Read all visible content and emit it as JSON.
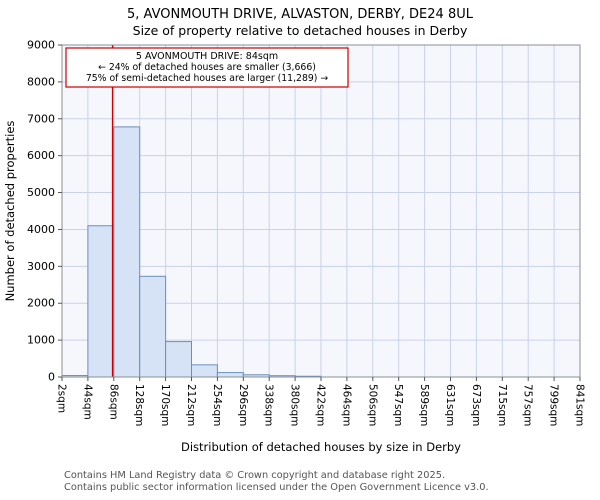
{
  "chart_data": {
    "type": "bar",
    "title": "5, AVONMOUTH DRIVE, ALVASTON, DERBY, DE24 8UL",
    "subtitle": "Size of property relative to detached houses in Derby",
    "xlabel": "Distribution of detached houses by size in Derby",
    "ylabel": "Number of detached properties",
    "ylim": [
      0,
      9000
    ],
    "ytick_step": 1000,
    "grid": true,
    "categories": [
      "2sqm",
      "44sqm",
      "86sqm",
      "128sqm",
      "170sqm",
      "212sqm",
      "254sqm",
      "296sqm",
      "338sqm",
      "380sqm",
      "422sqm",
      "464sqm",
      "506sqm",
      "547sqm",
      "589sqm",
      "631sqm",
      "673sqm",
      "715sqm",
      "757sqm",
      "799sqm",
      "841sqm"
    ],
    "values": [
      40,
      4100,
      6780,
      2730,
      960,
      330,
      120,
      60,
      35,
      20,
      0,
      0,
      0,
      0,
      0,
      0,
      0,
      0,
      0,
      0
    ],
    "bar_fill": "#d6e2f5",
    "bar_stroke": "#6c8ebf",
    "grid_color": "#c9d2e8",
    "plot_bg": "#f5f7fc",
    "spine_color": "#8a8f99",
    "marker": {
      "value": 84,
      "label": "84sqm",
      "color": "#cc0000"
    },
    "annotation": {
      "border_color": "#cc0000",
      "lines": [
        "5 AVONMOUTH DRIVE: 84sqm",
        "← 24% of detached houses are smaller (3,666)",
        "75% of semi-detached houses are larger (11,289) →"
      ]
    }
  },
  "footer": {
    "line1": "Contains HM Land Registry data © Crown copyright and database right 2025.",
    "line2": "Contains public sector information licensed under the Open Government Licence v3.0."
  }
}
